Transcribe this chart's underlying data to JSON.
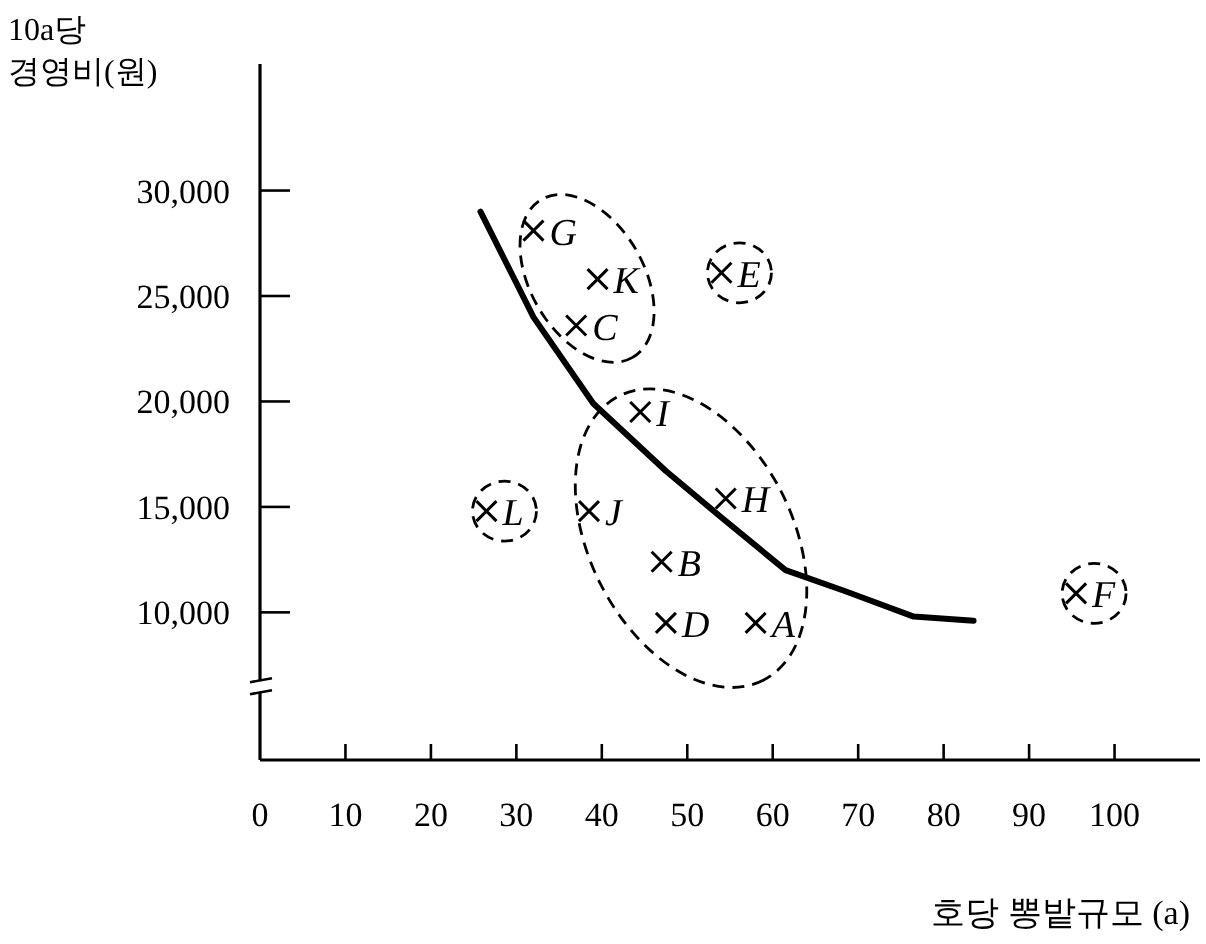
{
  "chart_data": {
    "type": "scatter",
    "xlabel": "호당 뽕밭규모 (a)",
    "ylabel": "10a당 경영비(원)",
    "xlim": [
      0,
      110
    ],
    "ylim": [
      3000,
      36000
    ],
    "xticks": [
      0,
      10,
      20,
      30,
      40,
      50,
      60,
      70,
      80,
      90,
      100
    ],
    "yticks": [
      {
        "value": 10000,
        "label": "10,000"
      },
      {
        "value": 15000,
        "label": "15,000"
      },
      {
        "value": 20000,
        "label": "20,000"
      },
      {
        "value": 25000,
        "label": "25,000"
      },
      {
        "value": 30000,
        "label": "30,000"
      }
    ],
    "grid": false,
    "series": [
      {
        "marker": "cross",
        "color": "#000000",
        "x": [
          58,
          47,
          37,
          47.5,
          54,
          95.5,
          32,
          54.5,
          44.5,
          38.5,
          39.5,
          26.5
        ],
        "values": [
          9500,
          12400,
          23600,
          9500,
          26100,
          10900,
          28100,
          15400,
          19500,
          14800,
          25800,
          14800
        ]
      },
      {
        "type": "line",
        "line_style": "solid",
        "color": "#000000",
        "x": [
          25.8,
          32,
          39,
          47.5,
          54,
          61.5,
          68.5,
          76.5,
          83.5
        ],
        "values": [
          29000,
          24000,
          19900,
          16700,
          14500,
          12000,
          11000,
          9800,
          9600
        ]
      }
    ],
    "annotations": [
      {
        "text": "A",
        "x": 58,
        "y": 9500
      },
      {
        "text": "B",
        "x": 47,
        "y": 12400
      },
      {
        "text": "C",
        "x": 37,
        "y": 23600
      },
      {
        "text": "D",
        "x": 47.5,
        "y": 9500
      },
      {
        "text": "E",
        "x": 54,
        "y": 26100
      },
      {
        "text": "F",
        "x": 95.5,
        "y": 10900
      },
      {
        "text": "G",
        "x": 32,
        "y": 28100
      },
      {
        "text": "H",
        "x": 54.5,
        "y": 15400
      },
      {
        "text": "I",
        "x": 44.5,
        "y": 19500
      },
      {
        "text": "J",
        "x": 38.5,
        "y": 14800
      },
      {
        "text": "K",
        "x": 39.5,
        "y": 25800
      },
      {
        "text": "L",
        "x": 26.5,
        "y": 14800
      }
    ]
  }
}
